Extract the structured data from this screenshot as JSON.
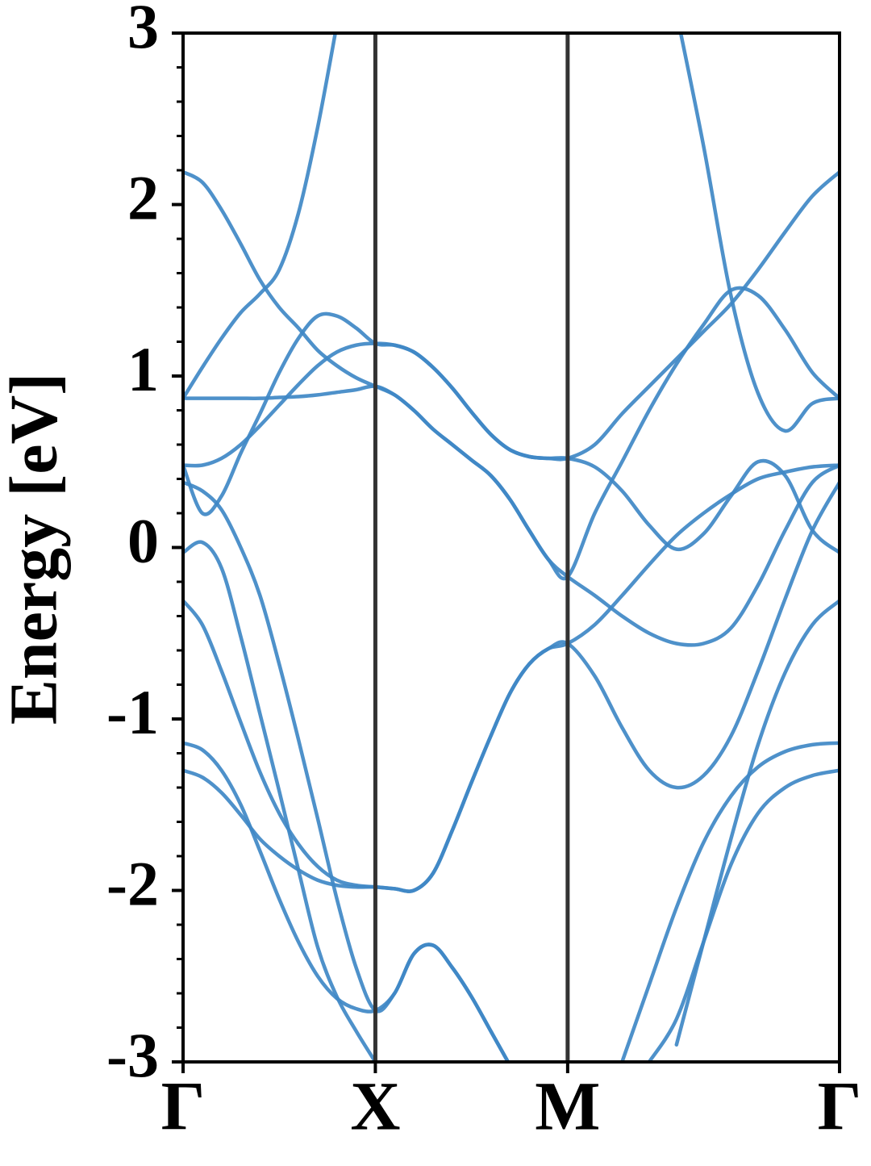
{
  "chart_data": {
    "type": "line",
    "ylabel": "Energy [eV]",
    "color": "#3f88c5",
    "x": [
      0,
      0.1,
      0.2,
      0.3,
      0.4,
      0.5,
      0.6,
      0.7,
      0.8,
      0.9,
      1,
      1.1,
      1.2,
      1.3,
      1.4,
      1.5,
      1.6,
      1.7,
      1.8,
      1.9,
      2,
      2.141,
      2.283,
      2.424,
      2.566,
      2.707,
      2.849,
      2.99,
      3.131,
      3.273,
      3.414
    ],
    "series": [
      {
        "values": [
          2.19,
          2.13,
          1.97,
          1.77,
          1.56,
          1.4,
          1.28,
          1.15,
          1.06,
          0.99,
          0.94,
          0.89,
          0.8,
          0.69,
          0.6,
          0.51,
          0.42,
          0.28,
          0.1,
          -0.07,
          -0.17,
          0.2,
          0.5,
          0.8,
          1.07,
          1.3,
          1.5,
          1.47,
          1.27,
          1.02,
          0.87
        ]
      },
      {
        "values": [
          0.87,
          0.87,
          0.87,
          0.87,
          0.87,
          0.875,
          0.88,
          0.89,
          0.905,
          0.92,
          0.94,
          0.89,
          0.8,
          0.69,
          0.6,
          0.51,
          0.42,
          0.28,
          0.1,
          -0.07,
          -0.17,
          -0.28,
          -0.4,
          -0.5,
          -0.56,
          -0.56,
          -0.47,
          -0.22,
          0.1,
          0.38,
          0.48
        ]
      },
      {
        "values": [
          0.48,
          0.48,
          0.52,
          0.6,
          0.71,
          0.83,
          0.95,
          1.06,
          1.14,
          1.18,
          1.19,
          1.18,
          1.14,
          1.05,
          0.93,
          0.79,
          0.66,
          0.57,
          0.53,
          0.52,
          0.52,
          0.6,
          0.78,
          0.94,
          1.1,
          1.26,
          1.42,
          1.62,
          1.84,
          2.05,
          2.19
        ]
      },
      {
        "values": [
          0.48,
          0.2,
          0.3,
          0.55,
          0.78,
          1.02,
          1.22,
          1.35,
          1.35,
          1.28,
          1.19,
          1.18,
          1.14,
          1.05,
          0.93,
          0.79,
          0.66,
          0.57,
          0.53,
          0.52,
          0.52,
          0.47,
          0.33,
          0.13,
          -0.01,
          0.08,
          0.3,
          0.5,
          0.42,
          0.1,
          -0.03
        ]
      },
      {
        "values": [
          0.87,
          1.05,
          1.22,
          1.37,
          1.48,
          1.62,
          1.95,
          2.45,
          3.05,
          null,
          null,
          null,
          null,
          null,
          null,
          null,
          null,
          null,
          null,
          null,
          null,
          null,
          null,
          null,
          3.12,
          2.34,
          1.47,
          0.9,
          0.68,
          0.84,
          0.87
        ]
      },
      {
        "values": [
          -0.03,
          0.03,
          -0.12,
          -0.52,
          -0.97,
          -1.42,
          -1.88,
          -2.33,
          -2.62,
          -2.82,
          -3.0,
          null,
          null,
          null,
          null,
          null,
          null,
          null,
          null,
          null,
          null,
          null,
          null,
          null,
          -2.9,
          -2.3,
          -1.7,
          -1.15,
          -0.73,
          -0.45,
          -0.31
        ]
      },
      {
        "values": [
          0.38,
          0.33,
          0.22,
          0.0,
          -0.28,
          -0.68,
          -1.12,
          -1.58,
          -2.05,
          -2.45,
          -2.7,
          -2.6,
          -2.37,
          -2.32,
          -2.45,
          -2.62,
          -2.82,
          -3.02,
          null,
          null,
          null,
          null,
          null,
          -3.0,
          -2.75,
          -2.3,
          -1.85,
          -1.55,
          -1.4,
          -1.33,
          -1.3
        ]
      },
      {
        "values": [
          -1.14,
          -1.18,
          -1.3,
          -1.5,
          -1.77,
          -2.05,
          -2.3,
          -2.5,
          -2.63,
          -2.69,
          -2.7,
          -2.6,
          -2.37,
          -2.32,
          -2.45,
          -2.62,
          -2.82,
          -3.02,
          null,
          null,
          null,
          null,
          -3.0,
          -2.55,
          -2.1,
          -1.72,
          -1.45,
          -1.28,
          -1.19,
          -1.15,
          -1.14
        ]
      },
      {
        "values": [
          -0.31,
          -0.45,
          -0.72,
          -1.02,
          -1.31,
          -1.55,
          -1.73,
          -1.86,
          -1.94,
          -1.97,
          -1.98,
          -1.99,
          -2.0,
          -1.9,
          -1.65,
          -1.37,
          -1.1,
          -0.85,
          -0.68,
          -0.59,
          -0.56,
          -0.75,
          -1.05,
          -1.3,
          -1.4,
          -1.33,
          -1.1,
          -0.72,
          -0.3,
          0.1,
          0.38
        ]
      },
      {
        "values": [
          -1.3,
          -1.34,
          -1.43,
          -1.56,
          -1.7,
          -1.8,
          -1.88,
          -1.94,
          -1.97,
          -1.98,
          -1.98,
          -1.99,
          -2.0,
          -1.9,
          -1.65,
          -1.37,
          -1.1,
          -0.85,
          -0.68,
          -0.59,
          -0.56,
          -0.45,
          -0.28,
          -0.1,
          0.07,
          0.2,
          0.31,
          0.4,
          0.44,
          0.47,
          0.48
        ]
      }
    ],
    "xlim": [
      0,
      3.414
    ],
    "xticks": [
      {
        "value": 0,
        "label": "Γ"
      },
      {
        "value": 1,
        "label": "X"
      },
      {
        "value": 2,
        "label": "M"
      },
      {
        "value": 3.414,
        "label": "Γ"
      }
    ],
    "ylim": [
      -3,
      3
    ],
    "yticks": [
      -3,
      -2,
      -1,
      0,
      1,
      2,
      3
    ],
    "yminorticks": [
      -2.8,
      -2.6,
      -2.4,
      -2.2,
      -1.8,
      -1.6,
      -1.4,
      -1.2,
      -0.8,
      -0.6,
      -0.4,
      -0.2,
      0.2,
      0.4,
      0.6,
      0.8,
      1.2,
      1.4,
      1.6,
      1.8,
      2.2,
      2.4,
      2.6,
      2.8
    ]
  }
}
